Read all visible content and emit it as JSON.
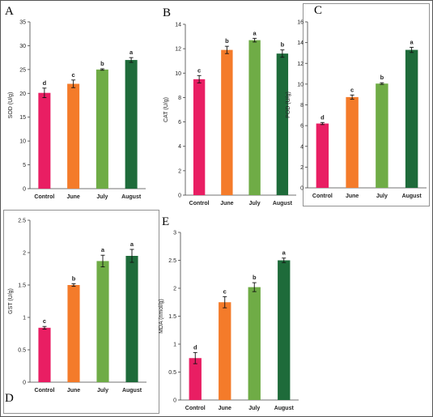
{
  "colors": {
    "control": "#e91e63",
    "june": "#f47b2a",
    "july": "#6fac46",
    "august": "#1e6b3a"
  },
  "chart_data": [
    {
      "panel": "A",
      "type": "bar",
      "ylabel": "SOD (U/g)",
      "ylim": [
        0,
        35
      ],
      "yticks": [
        0,
        5,
        10,
        15,
        20,
        25,
        30,
        35
      ],
      "categories": [
        "Control",
        "June",
        "July",
        "August"
      ],
      "values": [
        20.1,
        22.0,
        25.0,
        27.0
      ],
      "errors": [
        1.0,
        0.8,
        0.15,
        0.5
      ],
      "significance": [
        "d",
        "c",
        "b",
        "a"
      ]
    },
    {
      "panel": "B",
      "type": "bar",
      "ylabel": "CAT (U/g)",
      "ylim": [
        0,
        14
      ],
      "yticks": [
        0,
        2,
        4,
        6,
        8,
        10,
        12,
        14
      ],
      "categories": [
        "Control",
        "June",
        "July",
        "August"
      ],
      "values": [
        9.5,
        11.9,
        12.7,
        11.6
      ],
      "errors": [
        0.3,
        0.3,
        0.15,
        0.3
      ],
      "significance": [
        "c",
        "b",
        "a",
        "b"
      ]
    },
    {
      "panel": "C",
      "type": "bar",
      "ylabel": "POD (U/g)",
      "ylim": [
        0,
        16
      ],
      "yticks": [
        0,
        2,
        4,
        6,
        8,
        10,
        12,
        14,
        16
      ],
      "categories": [
        "Control",
        "June",
        "July",
        "August"
      ],
      "values": [
        6.2,
        8.75,
        10.05,
        13.3
      ],
      "errors": [
        0.1,
        0.2,
        0.08,
        0.25
      ],
      "significance": [
        "d",
        "c",
        "b",
        "a"
      ]
    },
    {
      "panel": "D",
      "type": "bar",
      "ylabel": "GST (U/g)",
      "ylim": [
        0,
        2.5
      ],
      "yticks": [
        0,
        0.5,
        1,
        1.5,
        2,
        2.5
      ],
      "categories": [
        "Control",
        "June",
        "July",
        "August"
      ],
      "values": [
        0.84,
        1.5,
        1.87,
        1.95
      ],
      "errors": [
        0.02,
        0.02,
        0.09,
        0.1
      ],
      "significance": [
        "c",
        "b",
        "a",
        "a"
      ]
    },
    {
      "panel": "E",
      "type": "bar",
      "ylabel": "MDA (nmol/g)",
      "ylim": [
        0,
        3
      ],
      "yticks": [
        0,
        0.5,
        1,
        1.5,
        2,
        2.5,
        3
      ],
      "categories": [
        "Control",
        "June",
        "July",
        "August"
      ],
      "values": [
        0.75,
        1.75,
        2.02,
        2.5
      ],
      "errors": [
        0.1,
        0.1,
        0.08,
        0.04
      ],
      "significance": [
        "d",
        "c",
        "b",
        "a"
      ]
    }
  ]
}
